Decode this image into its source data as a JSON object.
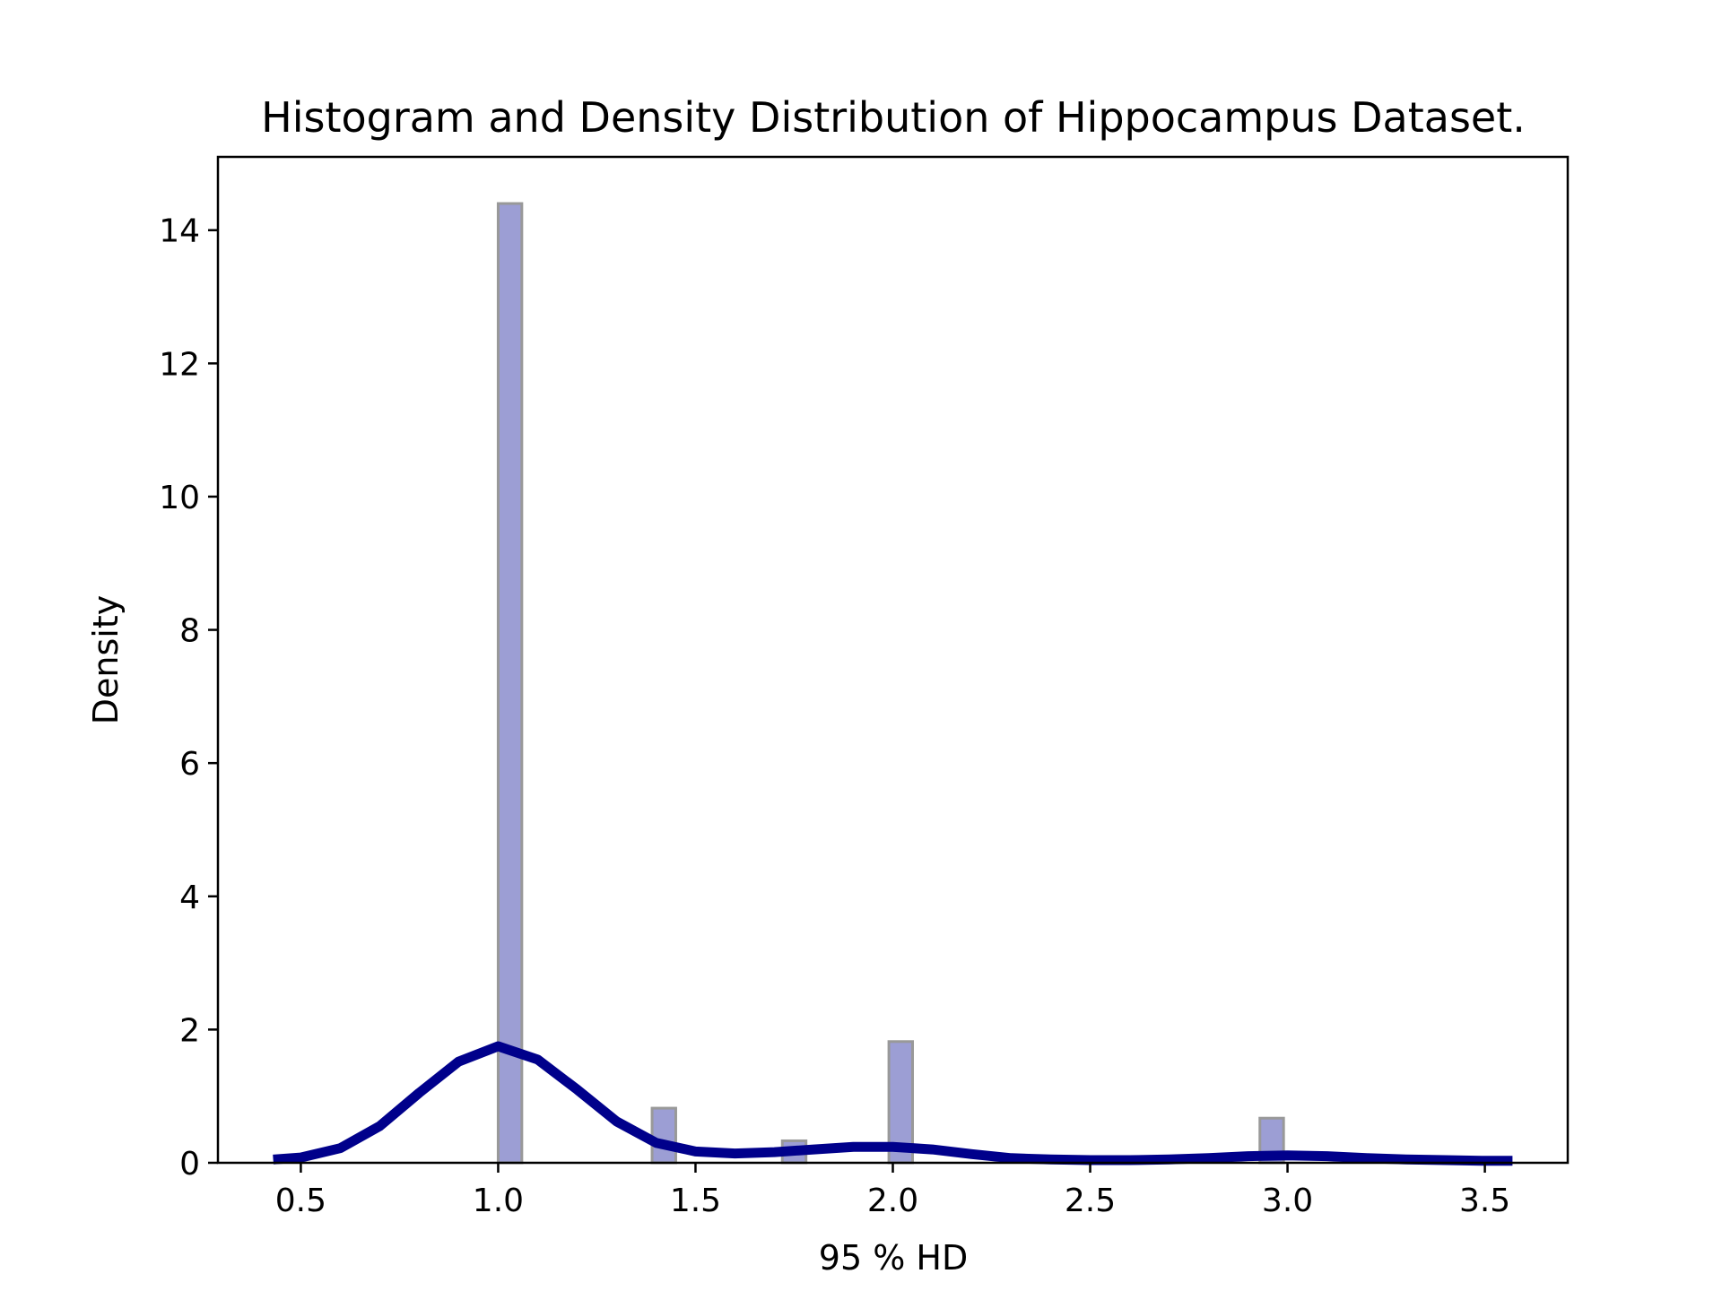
{
  "chart_data": {
    "type": "bar",
    "title": "Histogram and Density Distribution of Hippocampus Dataset.",
    "xlabel": "95 % HD",
    "ylabel": "Density",
    "xlim": [
      0.29,
      3.71
    ],
    "ylim": [
      0,
      15.1
    ],
    "xticks": [
      0.5,
      1.0,
      1.5,
      2.0,
      2.5,
      3.0,
      3.5
    ],
    "xtick_labels": [
      "0.5",
      "1.0",
      "1.5",
      "2.0",
      "2.5",
      "3.0",
      "3.5"
    ],
    "yticks": [
      0,
      2,
      4,
      6,
      8,
      10,
      12,
      14
    ],
    "ytick_labels": [
      "0",
      "2",
      "4",
      "6",
      "8",
      "10",
      "12",
      "14"
    ],
    "grid": false,
    "histogram": {
      "bars": [
        {
          "x0": 1.0,
          "x1": 1.06,
          "value": 14.4
        },
        {
          "x0": 1.39,
          "x1": 1.45,
          "value": 0.82
        },
        {
          "x0": 1.72,
          "x1": 1.78,
          "value": 0.33
        },
        {
          "x0": 1.99,
          "x1": 2.05,
          "value": 1.82
        },
        {
          "x0": 2.93,
          "x1": 2.99,
          "value": 0.67
        }
      ],
      "fill_color": "#9c9ed4",
      "edge_color": "#999999"
    },
    "density_curve": {
      "color": "#00008b",
      "x": [
        0.43,
        0.5,
        0.6,
        0.7,
        0.8,
        0.9,
        1.0,
        1.1,
        1.2,
        1.3,
        1.4,
        1.5,
        1.6,
        1.7,
        1.8,
        1.9,
        2.0,
        2.1,
        2.2,
        2.3,
        2.4,
        2.5,
        2.6,
        2.7,
        2.8,
        2.9,
        3.0,
        3.1,
        3.2,
        3.3,
        3.4,
        3.5,
        3.57
      ],
      "y": [
        0.05,
        0.08,
        0.22,
        0.55,
        1.05,
        1.52,
        1.75,
        1.55,
        1.1,
        0.62,
        0.3,
        0.17,
        0.14,
        0.16,
        0.2,
        0.24,
        0.24,
        0.2,
        0.13,
        0.07,
        0.05,
        0.04,
        0.04,
        0.05,
        0.07,
        0.1,
        0.11,
        0.1,
        0.07,
        0.05,
        0.04,
        0.03,
        0.03
      ]
    }
  }
}
